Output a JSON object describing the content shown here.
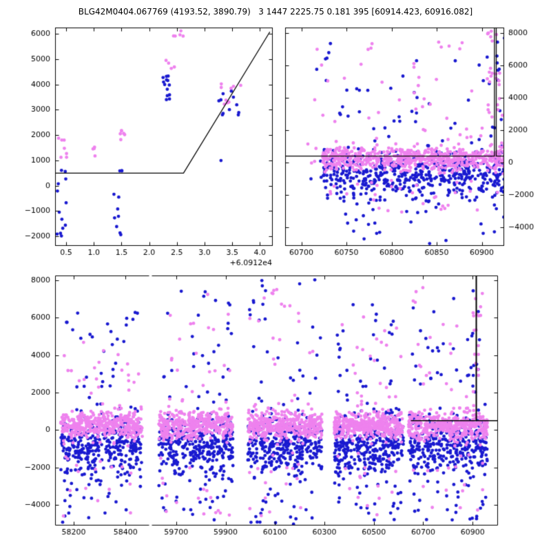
{
  "title": "BLG42M0404.067769 (4193.52, 3890.79)   3 1447 2225.75 0.181 395 [60914.423, 60916.082]",
  "colors": {
    "blue": "#1a1ad0",
    "violet": "#ee82ee",
    "line": "#000000",
    "frame": "#000000",
    "background": "#ffffff",
    "text": "#000000"
  },
  "chart_data": [
    {
      "id": "zoom-panel-top-left",
      "type": "scatter",
      "xlim": [
        0.3,
        4.22
      ],
      "ylim": [
        -2350,
        6250
      ],
      "x_offset_label": "+6.0912e4",
      "xticks": {
        "values": [
          0.5,
          1.0,
          1.5,
          2.0,
          2.5,
          3.0,
          3.5,
          4.0
        ],
        "labels": [
          "0.5",
          "1.0",
          "1.5",
          "2.0",
          "2.5",
          "3.0",
          "3.5",
          "4.0"
        ]
      },
      "yticks": {
        "side": "left",
        "values": [
          -2000,
          -1000,
          0,
          1000,
          2000,
          3000,
          4000,
          5000,
          6000
        ],
        "labels": [
          "−2000",
          "−1000",
          "0",
          "1000",
          "2000",
          "3000",
          "4000",
          "5000",
          "6000"
        ]
      },
      "model_line": [
        [
          0.3,
          500
        ],
        [
          2.62,
          500
        ],
        [
          4.18,
          6080
        ]
      ],
      "clusters": [
        {
          "color": "blue",
          "n": 13,
          "x": [
            0.33,
            0.5
          ],
          "y": {
            "dist": "uniform",
            "min": -2250,
            "max": 650
          }
        },
        {
          "color": "blue",
          "n": 11,
          "x": [
            1.36,
            1.52
          ],
          "y": {
            "dist": "uniform",
            "min": -2100,
            "max": 650
          }
        },
        {
          "color": "blue",
          "n": 13,
          "x": [
            2.22,
            2.42
          ],
          "y": {
            "dist": "uniform",
            "min": 3250,
            "max": 4350
          }
        },
        {
          "color": "blue",
          "n": 11,
          "x": [
            3.25,
            3.62
          ],
          "y": {
            "dist": "uniform",
            "min": 2450,
            "max": 3800
          }
        },
        {
          "color": "blue",
          "n": 1,
          "x": [
            3.28,
            3.32
          ],
          "y": {
            "dist": "uniform",
            "min": 900,
            "max": 1000
          }
        },
        {
          "color": "violet",
          "n": 7,
          "x": [
            0.36,
            0.52
          ],
          "y": {
            "dist": "uniform",
            "min": 1050,
            "max": 1950
          }
        },
        {
          "color": "violet",
          "n": 4,
          "x": [
            0.95,
            1.12
          ],
          "y": {
            "dist": "uniform",
            "min": 1150,
            "max": 1550
          }
        },
        {
          "color": "violet",
          "n": 6,
          "x": [
            1.4,
            1.56
          ],
          "y": {
            "dist": "uniform",
            "min": 1700,
            "max": 2620
          }
        },
        {
          "color": "violet",
          "n": 4,
          "x": [
            2.28,
            2.48
          ],
          "y": {
            "dist": "uniform",
            "min": 4600,
            "max": 5080
          }
        },
        {
          "color": "violet",
          "n": 5,
          "x": [
            2.42,
            2.62
          ],
          "y": {
            "dist": "uniform",
            "min": 5780,
            "max": 6220
          }
        },
        {
          "color": "violet",
          "n": 9,
          "x": [
            3.3,
            3.66
          ],
          "y": {
            "dist": "uniform",
            "min": 3150,
            "max": 4180
          }
        }
      ]
    },
    {
      "id": "recent-season-panel-top-right",
      "type": "scatter",
      "xlim": [
        60682,
        60924
      ],
      "ylim": [
        -5100,
        8340
      ],
      "xticks": {
        "values": [
          60700,
          60750,
          60800,
          60850,
          60900
        ],
        "labels": [
          "60700",
          "60750",
          "60800",
          "60850",
          "60900"
        ]
      },
      "yticks": {
        "side": "right",
        "values": [
          -4000,
          -2000,
          0,
          2000,
          4000,
          6000,
          8000
        ],
        "labels": [
          "−4000",
          "−2000",
          "0",
          "2000",
          "4000",
          "6000",
          "8000"
        ]
      },
      "model_line": [
        [
          60682,
          400
        ],
        [
          60914,
          400
        ],
        [
          60914,
          8340
        ],
        [
          60916,
          8340
        ],
        [
          60916,
          400
        ],
        [
          60924,
          400
        ]
      ],
      "clusters": [
        {
          "color": "blue",
          "n": 520,
          "x": [
            60723,
            60926
          ],
          "y": {
            "dist": "gauss",
            "mean": -850,
            "sd": 820,
            "clip": [
              -4600,
              1800
            ]
          }
        },
        {
          "color": "blue",
          "n": 40,
          "x": [
            60712,
            60926
          ],
          "y": {
            "dist": "uniform",
            "min": 1500,
            "max": 7700
          }
        },
        {
          "color": "blue",
          "n": 18,
          "x": [
            60740,
            60925
          ],
          "y": {
            "dist": "uniform",
            "min": -5050,
            "max": -3000
          }
        },
        {
          "color": "blue",
          "n": 10,
          "x": [
            60908,
            60922
          ],
          "y": {
            "dist": "uniform",
            "min": 2000,
            "max": 7800
          }
        },
        {
          "color": "blue",
          "n": 3,
          "x": [
            60705,
            60722
          ],
          "y": {
            "dist": "uniform",
            "min": -1500,
            "max": 300
          }
        },
        {
          "color": "violet",
          "n": 620,
          "x": [
            60723,
            60926
          ],
          "y": {
            "dist": "gauss",
            "mean": 300,
            "sd": 360,
            "clip": [
              -900,
              1600
            ]
          }
        },
        {
          "color": "violet",
          "n": 45,
          "x": [
            60712,
            60926
          ],
          "y": {
            "dist": "uniform",
            "min": 1300,
            "max": 7500
          }
        },
        {
          "color": "violet",
          "n": 30,
          "x": [
            60730,
            60920
          ],
          "y": {
            "dist": "uniform",
            "min": -3200,
            "max": -1000
          }
        },
        {
          "color": "violet",
          "n": 22,
          "x": [
            60906,
            60923
          ],
          "y": {
            "dist": "uniform",
            "min": 2500,
            "max": 8300
          }
        },
        {
          "color": "violet",
          "n": 4,
          "x": [
            60705,
            60722
          ],
          "y": {
            "dist": "uniform",
            "min": -200,
            "max": 1400
          }
        }
      ]
    },
    {
      "id": "full-light-curve-bottom",
      "type": "scatter",
      "x_segments": [
        [
          58128,
          58490
        ],
        [
          59600,
          61000
        ]
      ],
      "ylim": [
        -5070,
        8260
      ],
      "xticks": {
        "values": [
          58200,
          58400,
          59700,
          59900,
          60100,
          60300,
          60500,
          60700,
          60900
        ],
        "labels": [
          "58200",
          "58400",
          "59700",
          "59900",
          "60100",
          "60300",
          "60500",
          "60700",
          "60900"
        ]
      },
      "yticks": {
        "side": "left",
        "values": [
          -4000,
          -2000,
          0,
          2000,
          4000,
          6000,
          8000
        ],
        "labels": [
          "−4000",
          "−2000",
          "0",
          "2000",
          "4000",
          "6000",
          "8000"
        ]
      },
      "model_line": [
        [
          60650,
          500
        ],
        [
          60914,
          500
        ],
        [
          60914,
          8260
        ],
        [
          60916,
          8260
        ],
        [
          60916,
          500
        ],
        [
          61000,
          500
        ]
      ],
      "clusters": [
        {
          "color": "blue",
          "n": 340,
          "x": [
            58150,
            58465
          ],
          "y": {
            "dist": "gauss",
            "mean": -800,
            "sd": 830,
            "clip": [
              -4300,
              1800
            ]
          }
        },
        {
          "color": "blue",
          "n": 28,
          "x": [
            58155,
            58460
          ],
          "y": {
            "dist": "uniform",
            "min": 1500,
            "max": 6300
          }
        },
        {
          "color": "blue",
          "n": 20,
          "x": [
            58155,
            58460
          ],
          "y": {
            "dist": "uniform",
            "min": -5050,
            "max": -2600
          }
        },
        {
          "color": "blue",
          "n": 340,
          "x": [
            59630,
            59930
          ],
          "y": {
            "dist": "gauss",
            "mean": -800,
            "sd": 830,
            "clip": [
              -4300,
              1800
            ]
          }
        },
        {
          "color": "blue",
          "n": 28,
          "x": [
            59635,
            59925
          ],
          "y": {
            "dist": "uniform",
            "min": 1500,
            "max": 7800
          }
        },
        {
          "color": "blue",
          "n": 20,
          "x": [
            59635,
            59925
          ],
          "y": {
            "dist": "uniform",
            "min": -5050,
            "max": -2600
          }
        },
        {
          "color": "blue",
          "n": 340,
          "x": [
            59990,
            60290
          ],
          "y": {
            "dist": "gauss",
            "mean": -800,
            "sd": 830,
            "clip": [
              -4300,
              1800
            ]
          }
        },
        {
          "color": "blue",
          "n": 28,
          "x": [
            59995,
            60285
          ],
          "y": {
            "dist": "uniform",
            "min": 1500,
            "max": 8200
          }
        },
        {
          "color": "blue",
          "n": 20,
          "x": [
            59995,
            60285
          ],
          "y": {
            "dist": "uniform",
            "min": -5050,
            "max": -2600
          }
        },
        {
          "color": "blue",
          "n": 340,
          "x": [
            60340,
            60620
          ],
          "y": {
            "dist": "gauss",
            "mean": -800,
            "sd": 830,
            "clip": [
              -4300,
              1800
            ]
          }
        },
        {
          "color": "blue",
          "n": 28,
          "x": [
            60345,
            60615
          ],
          "y": {
            "dist": "uniform",
            "min": 1500,
            "max": 6800
          }
        },
        {
          "color": "blue",
          "n": 20,
          "x": [
            60345,
            60615
          ],
          "y": {
            "dist": "uniform",
            "min": -5050,
            "max": -2600
          }
        },
        {
          "color": "blue",
          "n": 340,
          "x": [
            60640,
            60960
          ],
          "y": {
            "dist": "gauss",
            "mean": -800,
            "sd": 830,
            "clip": [
              -4300,
              1800
            ]
          }
        },
        {
          "color": "blue",
          "n": 28,
          "x": [
            60645,
            60955
          ],
          "y": {
            "dist": "uniform",
            "min": 1500,
            "max": 7600
          }
        },
        {
          "color": "blue",
          "n": 20,
          "x": [
            60645,
            60955
          ],
          "y": {
            "dist": "uniform",
            "min": -5050,
            "max": -2600
          }
        },
        {
          "color": "blue",
          "n": 8,
          "x": [
            60900,
            60925
          ],
          "y": {
            "dist": "uniform",
            "min": 1800,
            "max": 7600
          }
        },
        {
          "color": "violet",
          "n": 380,
          "x": [
            58150,
            58465
          ],
          "y": {
            "dist": "gauss",
            "mean": 250,
            "sd": 380,
            "clip": [
              -1000,
              1500
            ]
          }
        },
        {
          "color": "violet",
          "n": 22,
          "x": [
            58155,
            58460
          ],
          "y": {
            "dist": "uniform",
            "min": 1300,
            "max": 4800
          }
        },
        {
          "color": "violet",
          "n": 16,
          "x": [
            58155,
            58460
          ],
          "y": {
            "dist": "uniform",
            "min": -4700,
            "max": -1200
          }
        },
        {
          "color": "violet",
          "n": 380,
          "x": [
            59630,
            59930
          ],
          "y": {
            "dist": "gauss",
            "mean": 250,
            "sd": 380,
            "clip": [
              -1000,
              1500
            ]
          }
        },
        {
          "color": "violet",
          "n": 22,
          "x": [
            59635,
            59925
          ],
          "y": {
            "dist": "uniform",
            "min": 1300,
            "max": 7400
          }
        },
        {
          "color": "violet",
          "n": 16,
          "x": [
            59635,
            59925
          ],
          "y": {
            "dist": "uniform",
            "min": -4700,
            "max": -1200
          }
        },
        {
          "color": "violet",
          "n": 380,
          "x": [
            59990,
            60290
          ],
          "y": {
            "dist": "gauss",
            "mean": 250,
            "sd": 380,
            "clip": [
              -1000,
              1500
            ]
          }
        },
        {
          "color": "violet",
          "n": 22,
          "x": [
            59995,
            60285
          ],
          "y": {
            "dist": "uniform",
            "min": 1300,
            "max": 8200
          }
        },
        {
          "color": "violet",
          "n": 16,
          "x": [
            59995,
            60285
          ],
          "y": {
            "dist": "uniform",
            "min": -4700,
            "max": -1200
          }
        },
        {
          "color": "violet",
          "n": 380,
          "x": [
            60340,
            60620
          ],
          "y": {
            "dist": "gauss",
            "mean": 250,
            "sd": 380,
            "clip": [
              -1000,
              1500
            ]
          }
        },
        {
          "color": "violet",
          "n": 22,
          "x": [
            60345,
            60615
          ],
          "y": {
            "dist": "uniform",
            "min": 1300,
            "max": 6200
          }
        },
        {
          "color": "violet",
          "n": 16,
          "x": [
            60345,
            60615
          ],
          "y": {
            "dist": "uniform",
            "min": -4700,
            "max": -1200
          }
        },
        {
          "color": "violet",
          "n": 380,
          "x": [
            60640,
            60960
          ],
          "y": {
            "dist": "gauss",
            "mean": 250,
            "sd": 380,
            "clip": [
              -1000,
              1500
            ]
          }
        },
        {
          "color": "violet",
          "n": 22,
          "x": [
            60645,
            60955
          ],
          "y": {
            "dist": "uniform",
            "min": 1300,
            "max": 8200
          }
        },
        {
          "color": "violet",
          "n": 16,
          "x": [
            60645,
            60955
          ],
          "y": {
            "dist": "uniform",
            "min": -4700,
            "max": -1200
          }
        },
        {
          "color": "violet",
          "n": 14,
          "x": [
            60900,
            60925
          ],
          "y": {
            "dist": "uniform",
            "min": 2000,
            "max": 8250
          }
        }
      ]
    }
  ]
}
